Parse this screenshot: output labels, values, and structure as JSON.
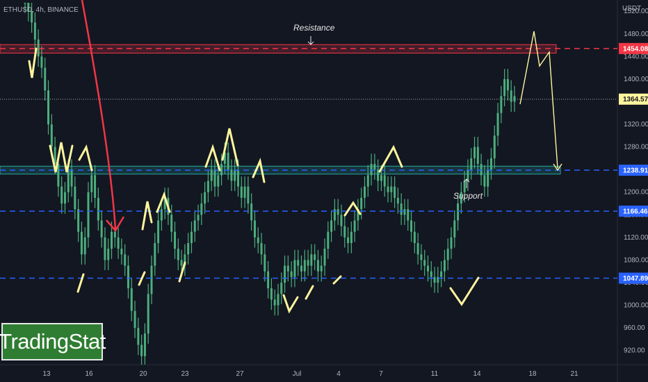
{
  "header": {
    "symbol": "ETHUSD, 4h, BINANCE"
  },
  "price_axis": {
    "currency": "USDT"
  },
  "branding": {
    "logo_text": "TradingStat"
  },
  "colors": {
    "background": "#131722",
    "candle_up": "#4caf7d",
    "resistance": "#f23645",
    "support": "#2962ff",
    "zone_green": "#26a69a",
    "annotation_yellow": "#fff59d",
    "arrow_red": "#f23645"
  },
  "annotations": {
    "resistance": "Resistance",
    "support": "Support"
  },
  "chart_data": {
    "type": "candlestick",
    "instrument": "ETHUSD",
    "timeframe": "4h",
    "exchange": "BINANCE",
    "ylim": [
      895,
      1535
    ],
    "y_ticks": [
      920,
      960,
      1000,
      1040,
      1080,
      1120,
      1160,
      1200,
      1240,
      1280,
      1320,
      1360,
      1400,
      1440,
      1480,
      1520
    ],
    "x_ticks": [
      "13",
      "16",
      "20",
      "23",
      "27",
      "Jul",
      "4",
      "7",
      "11",
      "14",
      "18",
      "21"
    ],
    "price_levels": [
      {
        "price": 1454.08,
        "label": "1454.08",
        "style": "resistance"
      },
      {
        "price": 1364.57,
        "label": "1364.57",
        "style": "current"
      },
      {
        "price": 1238.91,
        "label": "1238.91",
        "style": "support"
      },
      {
        "price": 1166.46,
        "label": "1166.46",
        "style": "support"
      },
      {
        "price": 1047.89,
        "label": "1047.89",
        "style": "support"
      }
    ],
    "zones": [
      {
        "name": "Resistance",
        "from": 1446,
        "to": 1461
      },
      {
        "name": "Support",
        "from": 1232,
        "to": 1246
      }
    ],
    "series": [
      {
        "values": [
          1535,
          1520,
          1500,
          1470,
          1440,
          1420,
          1380,
          1320,
          1280,
          1250,
          1210,
          1180,
          1200,
          1240,
          1210,
          1170,
          1130,
          1090,
          1120,
          1200,
          1230,
          1190,
          1150,
          1120,
          1080,
          1100,
          1130,
          1120,
          1100,
          1090,
          1070,
          1030,
          990,
          960,
          930,
          910,
          950,
          1020,
          1070,
          1110,
          1150,
          1170,
          1190,
          1160,
          1130,
          1100,
          1080,
          1070,
          1090,
          1110,
          1130,
          1150,
          1160,
          1180,
          1200,
          1220,
          1240,
          1210,
          1230,
          1250,
          1270,
          1240,
          1220,
          1240,
          1210,
          1190,
          1210,
          1180,
          1150,
          1120,
          1110,
          1090,
          1060,
          1030,
          1010,
          1000,
          1020,
          1040,
          1070,
          1060,
          1050,
          1080,
          1070,
          1060,
          1080,
          1070,
          1090,
          1080,
          1060,
          1070,
          1100,
          1130,
          1150,
          1170,
          1160,
          1140,
          1120,
          1110,
          1130,
          1150,
          1170,
          1190,
          1210,
          1230,
          1250,
          1240,
          1220,
          1230,
          1210,
          1200,
          1210,
          1190,
          1180,
          1160,
          1170,
          1150,
          1130,
          1110,
          1090,
          1080,
          1070,
          1060,
          1050,
          1040,
          1050,
          1060,
          1080,
          1100,
          1120,
          1150,
          1180,
          1200,
          1220,
          1240,
          1260,
          1280,
          1250,
          1230,
          1210,
          1240,
          1260,
          1300,
          1340,
          1370,
          1400,
          1380,
          1360,
          1370
        ]
      }
    ]
  }
}
